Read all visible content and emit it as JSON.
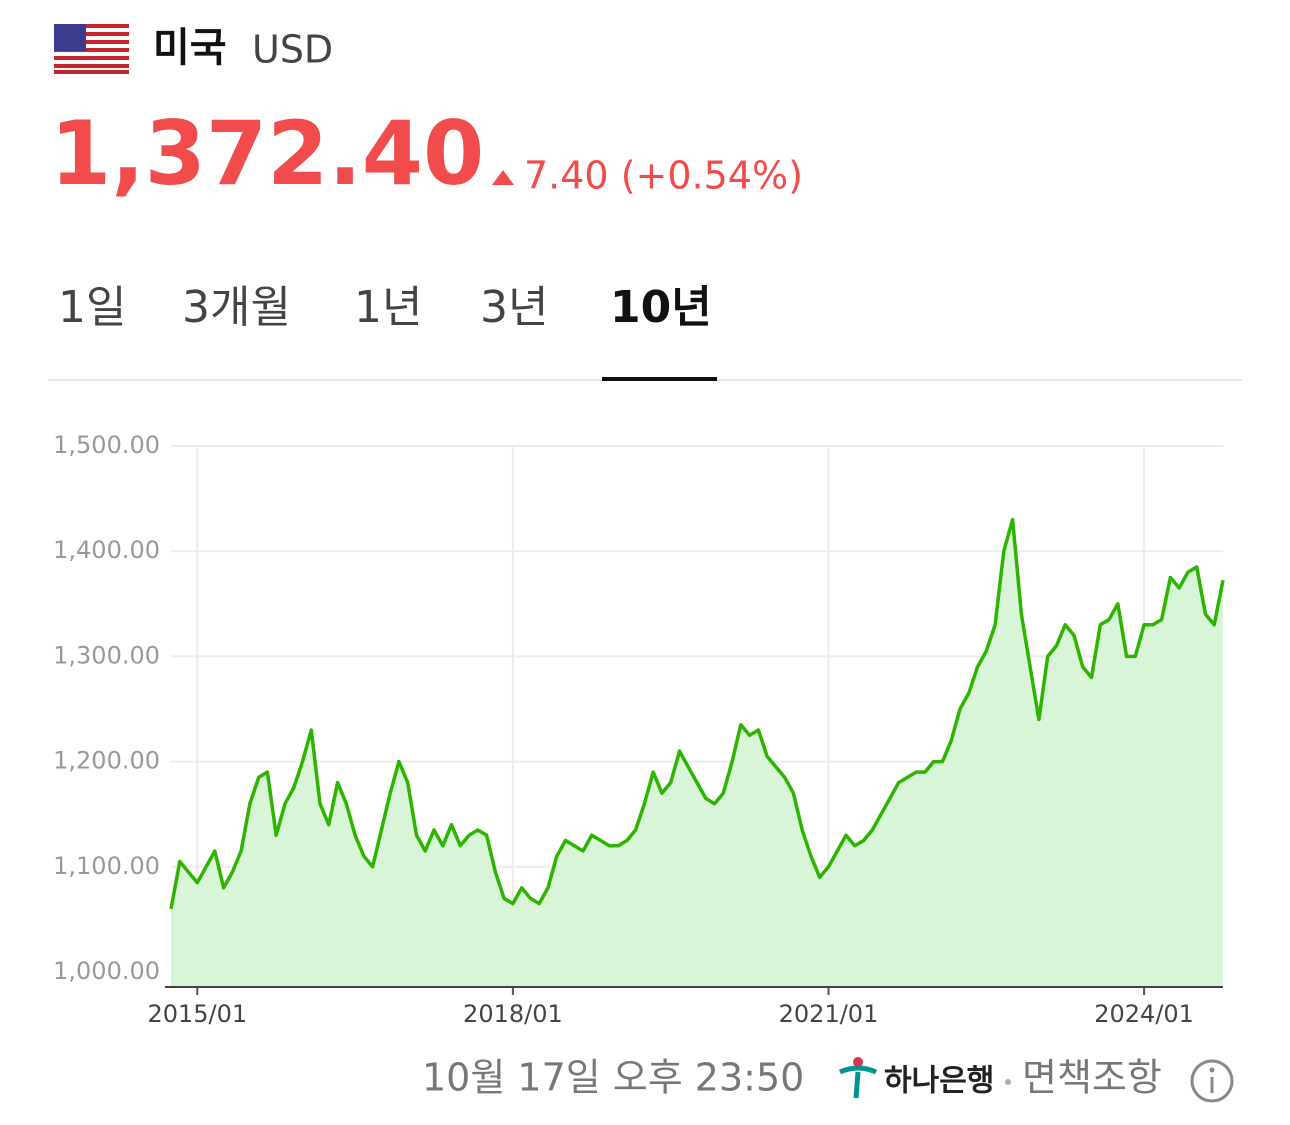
{
  "header": {
    "country": "미국",
    "currency": "USD",
    "price": "1,372.40",
    "change": "7.40 (+0.54%)"
  },
  "tabs": {
    "items": [
      "1일",
      "3개월",
      "1년",
      "3년",
      "10년"
    ],
    "active": 4
  },
  "chart_data": {
    "type": "line",
    "color": "#2db400",
    "fill": "#d8f5d8",
    "grid": true,
    "x": [
      "2014/10",
      "2014/11",
      "2014/12",
      "2015/01",
      "2015/02",
      "2015/03",
      "2015/04",
      "2015/05",
      "2015/06",
      "2015/07",
      "2015/08",
      "2015/09",
      "2015/10",
      "2015/11",
      "2015/12",
      "2016/01",
      "2016/02",
      "2016/03",
      "2016/04",
      "2016/05",
      "2016/06",
      "2016/07",
      "2016/08",
      "2016/09",
      "2016/10",
      "2016/11",
      "2016/12",
      "2017/01",
      "2017/02",
      "2017/03",
      "2017/04",
      "2017/05",
      "2017/06",
      "2017/07",
      "2017/08",
      "2017/09",
      "2017/10",
      "2017/11",
      "2017/12",
      "2018/01",
      "2018/02",
      "2018/03",
      "2018/04",
      "2018/05",
      "2018/06",
      "2018/07",
      "2018/08",
      "2018/09",
      "2018/10",
      "2018/11",
      "2018/12",
      "2019/01",
      "2019/02",
      "2019/03",
      "2019/04",
      "2019/05",
      "2019/06",
      "2019/07",
      "2019/08",
      "2019/09",
      "2019/10",
      "2019/11",
      "2019/12",
      "2020/01",
      "2020/02",
      "2020/03",
      "2020/04",
      "2020/05",
      "2020/06",
      "2020/07",
      "2020/08",
      "2020/09",
      "2020/10",
      "2020/11",
      "2020/12",
      "2021/01",
      "2021/02",
      "2021/03",
      "2021/04",
      "2021/05",
      "2021/06",
      "2021/07",
      "2021/08",
      "2021/09",
      "2021/10",
      "2021/11",
      "2021/12",
      "2022/01",
      "2022/02",
      "2022/03",
      "2022/04",
      "2022/05",
      "2022/06",
      "2022/07",
      "2022/08",
      "2022/09",
      "2022/10",
      "2022/11",
      "2022/12",
      "2023/01",
      "2023/02",
      "2023/03",
      "2023/04",
      "2023/05",
      "2023/06",
      "2023/07",
      "2023/08",
      "2023/09",
      "2023/10",
      "2023/11",
      "2023/12",
      "2024/01",
      "2024/02",
      "2024/03",
      "2024/04",
      "2024/05",
      "2024/06",
      "2024/07",
      "2024/08",
      "2024/09",
      "2024/10"
    ],
    "values": [
      1060,
      1105,
      1095,
      1085,
      1100,
      1115,
      1080,
      1095,
      1115,
      1160,
      1185,
      1190,
      1130,
      1160,
      1175,
      1200,
      1230,
      1160,
      1140,
      1180,
      1160,
      1130,
      1110,
      1100,
      1135,
      1170,
      1200,
      1180,
      1130,
      1115,
      1135,
      1120,
      1140,
      1120,
      1130,
      1135,
      1130,
      1095,
      1070,
      1065,
      1080,
      1070,
      1065,
      1080,
      1110,
      1125,
      1120,
      1115,
      1130,
      1125,
      1120,
      1120,
      1125,
      1135,
      1160,
      1190,
      1170,
      1180,
      1210,
      1195,
      1180,
      1165,
      1160,
      1170,
      1200,
      1235,
      1225,
      1230,
      1205,
      1195,
      1185,
      1170,
      1135,
      1110,
      1090,
      1100,
      1115,
      1130,
      1120,
      1125,
      1135,
      1150,
      1165,
      1180,
      1185,
      1190,
      1190,
      1200,
      1200,
      1220,
      1250,
      1265,
      1290,
      1305,
      1330,
      1400,
      1430,
      1340,
      1290,
      1240,
      1300,
      1310,
      1330,
      1320,
      1290,
      1280,
      1330,
      1335,
      1350,
      1300,
      1300,
      1330,
      1330,
      1335,
      1375,
      1365,
      1380,
      1385,
      1340,
      1330,
      1372.4
    ],
    "xticks": [
      "2015/01",
      "2018/01",
      "2021/01",
      "2024/01"
    ],
    "ylim": [
      1000,
      1500
    ],
    "yticks": [
      {
        "value": 1000,
        "label": "1,000.00"
      },
      {
        "value": 1100,
        "label": "1,100.00"
      },
      {
        "value": 1200,
        "label": "1,200.00"
      },
      {
        "value": 1300,
        "label": "1,300.00"
      },
      {
        "value": 1400,
        "label": "1,400.00"
      },
      {
        "value": 1500,
        "label": "1,500.00"
      }
    ]
  },
  "footer": {
    "timestamp": "10월 17일 오후 23:50",
    "bank": "하나은행",
    "disclaimer": "면책조항"
  }
}
